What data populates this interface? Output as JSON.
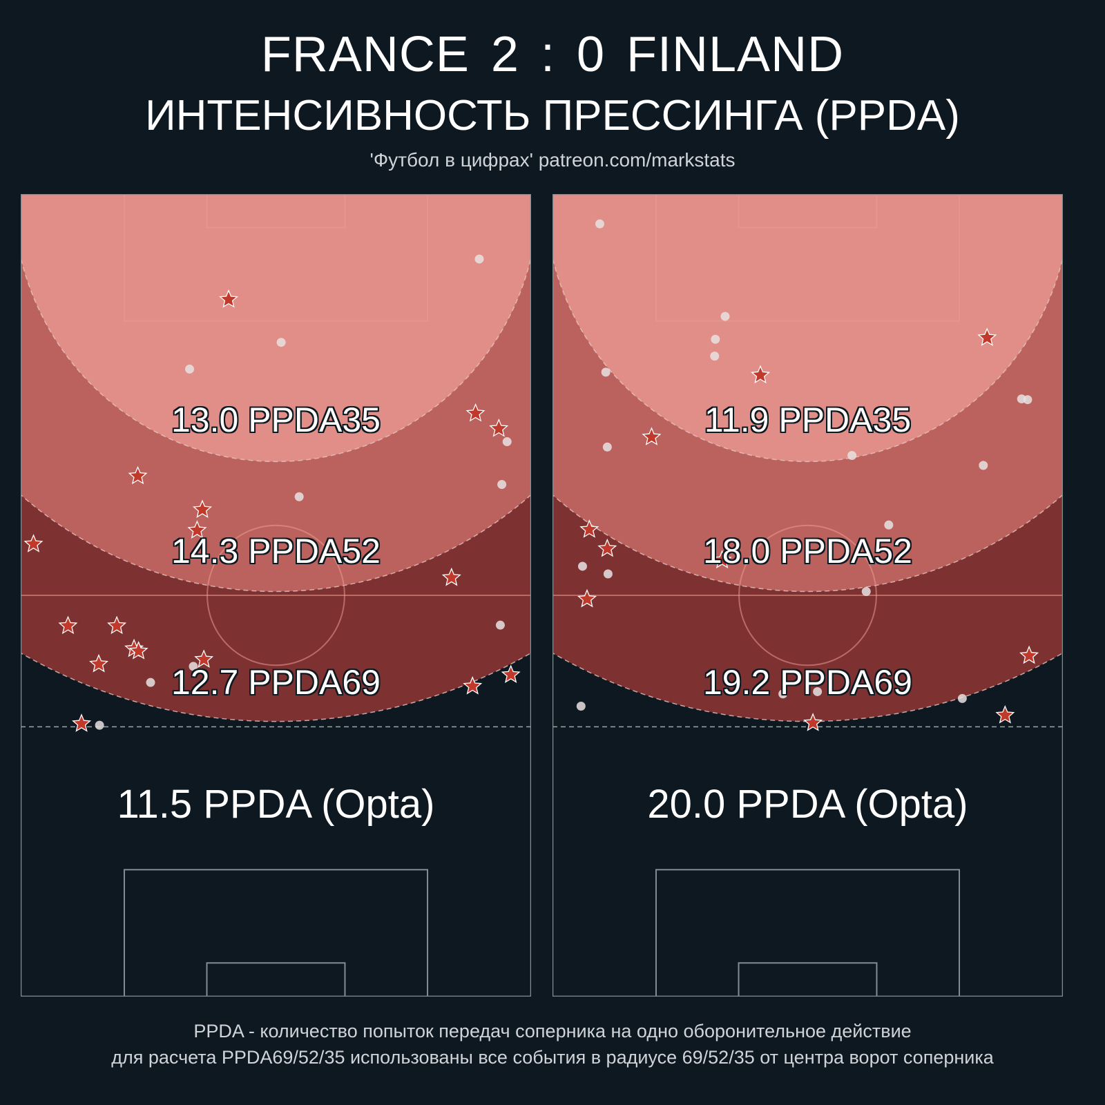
{
  "header": {
    "title": "FRANCE  2 : 0  FINLAND",
    "subtitle": "ИНТЕНСИВНОСТЬ ПРЕССИНГА (PPDA)",
    "credit": "'Футбол в цифрах' patreon.com/markstats"
  },
  "footer": {
    "line1": "PPDA - количество попыток передач соперника на одно оборонительное действие",
    "line2": "для расчета PPDA69/52/35 использованы все события в радиусе 69/52/35 от центра ворот соперника"
  },
  "colors": {
    "background": "#0e1821",
    "zone35": "#e08e87",
    "zone52": "#bb625e",
    "zone69": "#7d3131",
    "star": "#c0392b",
    "dot": "#e8e2e2",
    "pitch_line": "#7f8f92"
  },
  "chart_data": [
    {
      "type": "scatter",
      "team": "FRANCE",
      "zones": [
        {
          "radius": 35,
          "label": "13.0 PPDA35"
        },
        {
          "radius": 52,
          "label": "14.3 PPDA52"
        },
        {
          "radius": 69,
          "label": "12.7 PPDA69"
        }
      ],
      "opta_label": "11.5 PPDA (Opta)",
      "markers": {
        "dot": "circle",
        "star": "star-icon"
      },
      "dots": [
        [
          61.1,
          8.5
        ],
        [
          34.7,
          19.4
        ],
        [
          22.5,
          22.9
        ],
        [
          37.1,
          39.6
        ],
        [
          64.8,
          32.4
        ],
        [
          64.1,
          38.0
        ],
        [
          63.9,
          56.4
        ],
        [
          23.0,
          61.8
        ],
        [
          17.3,
          63.9
        ],
        [
          10.5,
          69.5
        ]
      ],
      "stars": [
        [
          27.7,
          13.8
        ],
        [
          60.6,
          28.7
        ],
        [
          63.7,
          30.7
        ],
        [
          15.6,
          36.9
        ],
        [
          24.2,
          41.3
        ],
        [
          23.5,
          44.0
        ],
        [
          1.7,
          45.8
        ],
        [
          57.4,
          50.2
        ],
        [
          6.3,
          56.5
        ],
        [
          12.8,
          56.5
        ],
        [
          15.1,
          59.5
        ],
        [
          15.7,
          59.8
        ],
        [
          10.4,
          61.5
        ],
        [
          24.4,
          60.9
        ],
        [
          60.2,
          64.4
        ],
        [
          65.3,
          62.9
        ],
        [
          8.1,
          69.3
        ]
      ]
    },
    {
      "type": "scatter",
      "team": "FINLAND",
      "zones": [
        {
          "radius": 35,
          "label": "11.9 PPDA35"
        },
        {
          "radius": 52,
          "label": "18.0 PPDA52"
        },
        {
          "radius": 69,
          "label": "19.2 PPDA69"
        }
      ],
      "opta_label": "20.0 PPDA (Opta)",
      "markers": {
        "dot": "circle",
        "star": "star-icon"
      },
      "dots": [
        [
          6.3,
          3.9
        ],
        [
          23.0,
          16.0
        ],
        [
          21.7,
          19.0
        ],
        [
          21.6,
          21.2
        ],
        [
          7.1,
          23.3
        ],
        [
          7.3,
          33.1
        ],
        [
          39.9,
          34.2
        ],
        [
          62.5,
          26.8
        ],
        [
          63.3,
          26.9
        ],
        [
          57.4,
          35.5
        ],
        [
          44.8,
          43.3
        ],
        [
          4.0,
          48.7
        ],
        [
          7.4,
          49.7
        ],
        [
          41.8,
          52.0
        ],
        [
          35.3,
          65.1
        ],
        [
          30.7,
          65.4
        ],
        [
          54.6,
          66.0
        ],
        [
          3.8,
          67.0
        ]
      ],
      "stars": [
        [
          27.7,
          23.7
        ],
        [
          57.9,
          18.8
        ],
        [
          13.2,
          31.8
        ],
        [
          4.9,
          43.9
        ],
        [
          7.3,
          46.4
        ],
        [
          22.6,
          47.9
        ],
        [
          4.6,
          53.0
        ],
        [
          63.5,
          60.4
        ],
        [
          60.3,
          68.2
        ],
        [
          34.7,
          69.2
        ]
      ]
    }
  ]
}
